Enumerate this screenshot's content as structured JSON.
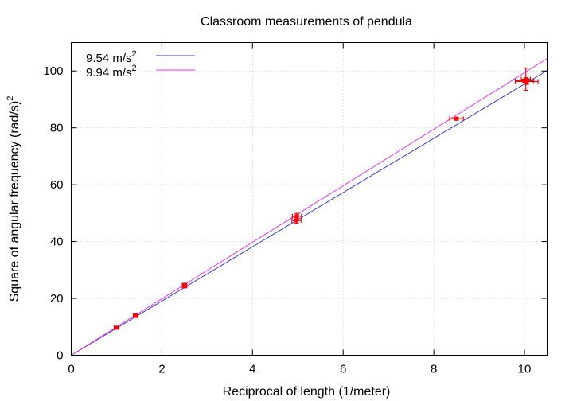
{
  "chart_data": {
    "type": "scatter",
    "title": "Classroom measurements of pendula",
    "xlabel": "Reciprocal of length (1/meter)",
    "ylabel": "Square of angular frequency (rad/s)",
    "ylabel_superscript": "2",
    "xlim": [
      0,
      10.5
    ],
    "ylim": [
      0,
      110
    ],
    "x_ticks": [
      0,
      2,
      4,
      6,
      8,
      10
    ],
    "y_ticks": [
      0,
      20,
      40,
      60,
      80,
      100
    ],
    "grid": true,
    "legend_position": "top-left",
    "fit_lines": [
      {
        "name": "9.54 m/s",
        "name_superscript": "2",
        "slope": 9.54,
        "color": "#3333dd"
      },
      {
        "name": "9.94 m/s",
        "name_superscript": "2",
        "slope": 9.94,
        "color": "#ee33ee"
      }
    ],
    "points": [
      {
        "x": 1.0,
        "y": 9.7,
        "xerr": 0.05,
        "yerr": 0.5
      },
      {
        "x": 1.42,
        "y": 13.9,
        "xerr": 0.05,
        "yerr": 0.6
      },
      {
        "x": 2.5,
        "y": 24.5,
        "xerr": 0.05,
        "yerr": 0.8
      },
      {
        "x": 4.97,
        "y": 47.4,
        "xerr": 0.1,
        "yerr": 1.0
      },
      {
        "x": 4.98,
        "y": 48.9,
        "xerr": 0.1,
        "yerr": 1.0
      },
      {
        "x": 8.5,
        "y": 83.2,
        "xerr": 0.15,
        "yerr": 0.5
      },
      {
        "x": 10.0,
        "y": 96.6,
        "xerr": 0.2,
        "yerr": 0.5
      },
      {
        "x": 10.03,
        "y": 97.1,
        "xerr": 0.1,
        "yerr": 3.9
      },
      {
        "x": 10.05,
        "y": 96.3,
        "xerr": 0.25,
        "yerr": 1.0
      }
    ],
    "point_color": "#ff0000"
  }
}
